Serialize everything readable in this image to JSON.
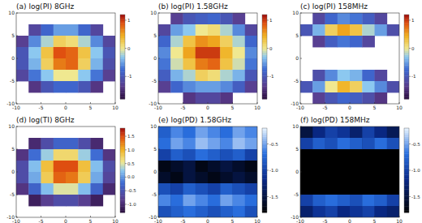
{
  "chart_data": [
    {
      "type": "heatmap",
      "title": "(a) log(PI) 8GHz",
      "color": "rainbow",
      "x": [
        -8.75,
        -6.25,
        -3.75,
        -1.25,
        1.25,
        3.75,
        6.25,
        8.75
      ],
      "y": [
        8.75,
        6.25,
        3.75,
        1.25,
        -1.25,
        -3.75,
        -6.25,
        -8.75
      ],
      "cells": [
        [
          null,
          null,
          null,
          null,
          null,
          null,
          null,
          null
        ],
        [
          null,
          -1.2,
          -0.8,
          -0.5,
          -0.5,
          -0.8,
          -1.2,
          null
        ],
        [
          -1.3,
          -0.6,
          -0.2,
          0.2,
          0.1,
          -0.2,
          -0.6,
          -1.2
        ],
        [
          -1.0,
          -0.3,
          0.3,
          0.9,
          0.8,
          0.3,
          -0.3,
          -1.0
        ],
        [
          -1.0,
          -0.4,
          0.2,
          0.7,
          0.8,
          0.2,
          -0.4,
          -1.1
        ],
        [
          -1.2,
          -0.7,
          -0.3,
          0.0,
          0.0,
          -0.3,
          -0.7,
          -1.3
        ],
        [
          null,
          -1.4,
          -1.0,
          -0.8,
          -0.8,
          -1.0,
          -1.4,
          null
        ],
        [
          null,
          null,
          null,
          null,
          null,
          null,
          null,
          null
        ]
      ],
      "xlim": [
        -10,
        10
      ],
      "ylim": [
        -10,
        10
      ],
      "xticks": [
        -10,
        -5,
        0,
        5,
        10
      ],
      "yticks": [
        -10,
        -5,
        0,
        5,
        10
      ],
      "colorbar_range": [
        -1.8,
        1.2
      ],
      "colorbar_ticks": [
        -1,
        0,
        1
      ]
    },
    {
      "type": "heatmap",
      "title": "(b) log(PI) 1.58GHz",
      "color": "rainbow",
      "x": [
        -8.75,
        -6.25,
        -3.75,
        -1.25,
        1.25,
        3.75,
        6.25,
        8.75
      ],
      "y": [
        8.75,
        6.25,
        3.75,
        1.25,
        -1.25,
        -3.75,
        -6.25,
        -8.75
      ],
      "cells": [
        [
          null,
          -1.3,
          -1.0,
          -0.9,
          -0.8,
          -1.0,
          -1.3,
          null
        ],
        [
          -1.2,
          -0.5,
          -0.3,
          0.0,
          0.1,
          -0.2,
          -0.6,
          -1.2
        ],
        [
          -0.8,
          -0.2,
          0.3,
          0.6,
          0.5,
          0.2,
          -0.2,
          -0.8
        ],
        [
          -0.6,
          0.0,
          0.5,
          1.0,
          1.0,
          0.4,
          0.0,
          -0.6
        ],
        [
          -0.7,
          -0.1,
          0.3,
          0.7,
          0.8,
          0.3,
          -0.1,
          -0.7
        ],
        [
          -0.9,
          -0.4,
          -0.2,
          0.2,
          0.1,
          -0.2,
          -0.4,
          -1.0
        ],
        [
          -1.3,
          -0.8,
          -0.6,
          -0.5,
          -0.5,
          -0.6,
          -0.9,
          -1.3
        ],
        [
          null,
          null,
          -1.4,
          -1.2,
          -1.2,
          -1.4,
          null,
          null
        ]
      ],
      "xlim": [
        -10,
        10
      ],
      "ylim": [
        -10,
        10
      ],
      "xticks": [
        -10,
        -5,
        0,
        5,
        10
      ],
      "yticks": [
        -10,
        -5,
        0,
        5,
        10
      ],
      "colorbar_range": [
        -1.8,
        1.2
      ],
      "colorbar_ticks": [
        -1,
        0,
        1
      ]
    },
    {
      "type": "heatmap",
      "title": "(c) log(PI) 158MHz",
      "color": "rainbow",
      "x": [
        -8.75,
        -6.25,
        -3.75,
        -1.25,
        1.25,
        3.75,
        6.25,
        8.75
      ],
      "y": [
        8.75,
        6.25,
        3.75,
        1.25,
        -1.25,
        -3.75,
        -6.25,
        -8.75
      ],
      "cells": [
        [
          null,
          -1.2,
          -0.8,
          -0.6,
          -0.7,
          -0.9,
          -1.2,
          null
        ],
        [
          -1.0,
          -0.4,
          0.2,
          0.5,
          0.3,
          -0.2,
          -0.5,
          -1.1
        ],
        [
          null,
          -1.3,
          -0.9,
          -0.7,
          -0.8,
          -1.2,
          null,
          null
        ],
        [
          null,
          null,
          null,
          null,
          null,
          null,
          null,
          null
        ],
        [
          null,
          null,
          null,
          null,
          null,
          null,
          null,
          null
        ],
        [
          null,
          -1.1,
          -0.6,
          -0.3,
          -0.4,
          -0.8,
          -1.2,
          null
        ],
        [
          -1.0,
          -0.5,
          0.0,
          0.4,
          0.2,
          -0.3,
          -0.6,
          -1.1
        ],
        [
          null,
          -1.3,
          -1.0,
          -0.8,
          -0.9,
          -1.1,
          -1.4,
          null
        ]
      ],
      "xlim": [
        -10,
        10
      ],
      "ylim": [
        -10,
        10
      ],
      "xticks": [
        -10,
        -5,
        0,
        5,
        10
      ],
      "yticks": [
        -10,
        -5,
        0,
        5,
        10
      ],
      "colorbar_range": [
        -1.8,
        1.2
      ],
      "colorbar_ticks": [
        -1,
        0,
        1
      ]
    },
    {
      "type": "heatmap",
      "title": "(d) log(TI) 8GHz",
      "color": "rainbow",
      "x": [
        -8.75,
        -6.25,
        -3.75,
        -1.25,
        1.25,
        3.75,
        6.25,
        8.75
      ],
      "y": [
        8.75,
        6.25,
        3.75,
        1.25,
        -1.25,
        -3.75,
        -6.25,
        -8.75
      ],
      "cells": [
        [
          null,
          null,
          null,
          null,
          null,
          null,
          null,
          null
        ],
        [
          null,
          -1.0,
          -0.6,
          -0.3,
          -0.3,
          -0.6,
          -1.0,
          null
        ],
        [
          -0.9,
          -0.2,
          0.3,
          0.7,
          0.7,
          0.3,
          -0.2,
          -0.9
        ],
        [
          -0.6,
          0.2,
          0.9,
          1.5,
          1.5,
          0.9,
          0.2,
          -0.6
        ],
        [
          -0.6,
          0.1,
          0.8,
          1.4,
          1.3,
          0.8,
          0.1,
          -0.7
        ],
        [
          -0.9,
          -0.3,
          0.2,
          0.5,
          0.5,
          0.2,
          -0.3,
          -1.0
        ],
        [
          null,
          -1.1,
          -0.8,
          -0.6,
          -0.6,
          -0.8,
          -1.1,
          null
        ],
        [
          null,
          null,
          null,
          null,
          null,
          null,
          null,
          null
        ]
      ],
      "xlim": [
        -10,
        10
      ],
      "ylim": [
        -10,
        10
      ],
      "xticks": [
        -10,
        -5,
        0,
        5,
        10
      ],
      "yticks": [
        -10,
        -5,
        0,
        5,
        10
      ],
      "colorbar_range": [
        -1.3,
        1.8
      ],
      "colorbar_ticks": [
        {
          "value": -1,
          "label": "-1.0"
        },
        -0.5,
        {
          "value": 0,
          "label": "0.0"
        },
        0.5,
        {
          "value": 1,
          "label": "1.0"
        },
        1.5
      ]
    },
    {
      "type": "heatmap",
      "title": "(e) log(PD) 1.58GHz",
      "color": "blues",
      "x": [
        -8.75,
        -6.25,
        -3.75,
        -1.25,
        1.25,
        3.75,
        6.25,
        8.75
      ],
      "y": [
        8.75,
        6.25,
        3.75,
        1.25,
        -1.25,
        -3.75,
        -6.25,
        -8.75
      ],
      "cells": [
        [
          -0.8,
          -0.6,
          -0.7,
          -0.5,
          -0.6,
          -0.7,
          -0.5,
          -0.6
        ],
        [
          -0.7,
          -0.5,
          -0.6,
          -0.4,
          -0.5,
          -0.6,
          -0.4,
          -0.5
        ],
        [
          -1.0,
          -0.8,
          -0.9,
          -0.7,
          -0.8,
          -0.9,
          -0.8,
          -1.0
        ],
        [
          -1.7,
          -1.6,
          -1.5,
          -1.7,
          -1.6,
          -1.5,
          -1.6,
          -1.7
        ],
        [
          -1.6,
          -1.7,
          -1.5,
          -1.6,
          -1.7,
          -1.6,
          -1.5,
          -1.6
        ],
        [
          -0.9,
          -1.0,
          -0.8,
          -0.9,
          -1.0,
          -0.8,
          -0.9,
          -1.0
        ],
        [
          -0.6,
          -0.7,
          -0.5,
          -0.6,
          -0.7,
          -0.5,
          -0.6,
          -0.7
        ],
        [
          -0.9,
          -0.8,
          -0.7,
          -0.8,
          -0.9,
          -0.8,
          -0.7,
          -0.9
        ]
      ],
      "xlim": [
        -10,
        10
      ],
      "ylim": [
        -10,
        10
      ],
      "xticks": [
        -10,
        -5,
        0,
        5,
        10
      ],
      "yticks": [
        -10,
        -5,
        0,
        5,
        10
      ],
      "colorbar_range": [
        -1.8,
        -0.2
      ],
      "colorbar_ticks": [
        -1.5,
        {
          "value": -1,
          "label": "-1.0"
        },
        -0.5
      ]
    },
    {
      "type": "heatmap",
      "title": "(f) log(PD) 158MHz",
      "color": "blues",
      "x": [
        -8.75,
        -6.25,
        -3.75,
        -1.25,
        1.25,
        3.75,
        6.25,
        8.75
      ],
      "y": [
        8.75,
        6.25,
        3.75,
        1.25,
        -1.25,
        -3.75,
        -6.25,
        -8.75
      ],
      "cells": [
        [
          -1.5,
          -1.2,
          -1.0,
          -1.1,
          -1.3,
          -1.0,
          -1.2,
          -1.4
        ],
        [
          -1.0,
          -0.8,
          -0.9,
          -0.7,
          -0.8,
          -0.9,
          -0.7,
          -0.9
        ],
        [
          -1.8,
          -1.8,
          -1.8,
          -1.8,
          -1.8,
          -1.8,
          -1.8,
          -1.8
        ],
        [
          -1.8,
          -1.8,
          -1.8,
          -1.8,
          -1.8,
          -1.8,
          -1.8,
          -1.8
        ],
        [
          -1.8,
          -1.8,
          -1.8,
          -1.8,
          -1.8,
          -1.8,
          -1.8,
          -1.8
        ],
        [
          -1.8,
          -1.8,
          -1.8,
          -1.8,
          -1.8,
          -1.8,
          -1.8,
          -1.8
        ],
        [
          -1.0,
          -0.8,
          -0.7,
          -0.8,
          -0.9,
          -0.7,
          -0.8,
          -1.0
        ],
        [
          -1.3,
          -1.1,
          -1.0,
          -1.2,
          -1.1,
          -1.0,
          -1.2,
          -1.3
        ]
      ],
      "xlim": [
        -10,
        10
      ],
      "ylim": [
        -10,
        10
      ],
      "xticks": [
        -10,
        -5,
        0,
        5,
        10
      ],
      "yticks": [
        -10,
        -5,
        0,
        5,
        10
      ],
      "colorbar_range": [
        -1.8,
        -0.2
      ],
      "colorbar_ticks": [
        -1.5,
        {
          "value": -1,
          "label": "-1.0"
        },
        -0.5
      ]
    }
  ]
}
